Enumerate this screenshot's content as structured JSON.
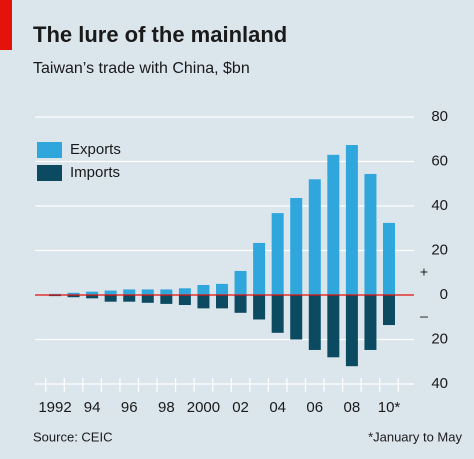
{
  "chart_data": {
    "type": "bar",
    "title": "The lure of the mainland",
    "subtitle": "Taiwan’s trade with China, $bn",
    "source": "Source: CEIC",
    "footnote": "*January to May",
    "categories": [
      "1992",
      null,
      "94",
      null,
      "96",
      null,
      "98",
      null,
      "2000",
      null,
      "02",
      null,
      "04",
      null,
      "06",
      null,
      "08",
      null,
      "10*"
    ],
    "series": [
      {
        "name": "Exports",
        "color": "#2fa6dc",
        "values": [
          0.5,
          1,
          1.5,
          2,
          2.5,
          2.5,
          2.5,
          3,
          4.5,
          5,
          10.8,
          23.4,
          36.8,
          43.6,
          52,
          63,
          67.4,
          54.4,
          32.4
        ]
      },
      {
        "name": "Imports",
        "color": "#0c4a62",
        "values": [
          -0.5,
          -1,
          -1.5,
          -3,
          -3,
          -3.5,
          -4,
          -4.5,
          -6,
          -6,
          -8,
          -11,
          -17,
          -20,
          -24.7,
          -28,
          -32,
          -24.7,
          -13.5
        ]
      }
    ],
    "ylim": [
      -40,
      80
    ],
    "yticks": [
      {
        "value": -40,
        "label": "40"
      },
      {
        "value": -20,
        "label": "20"
      },
      0,
      20,
      40,
      60,
      80
    ],
    "positive_marker": "+",
    "negative_marker": "–",
    "zero_line_color": "#e3120b",
    "grid": true,
    "legend": "top-left"
  }
}
